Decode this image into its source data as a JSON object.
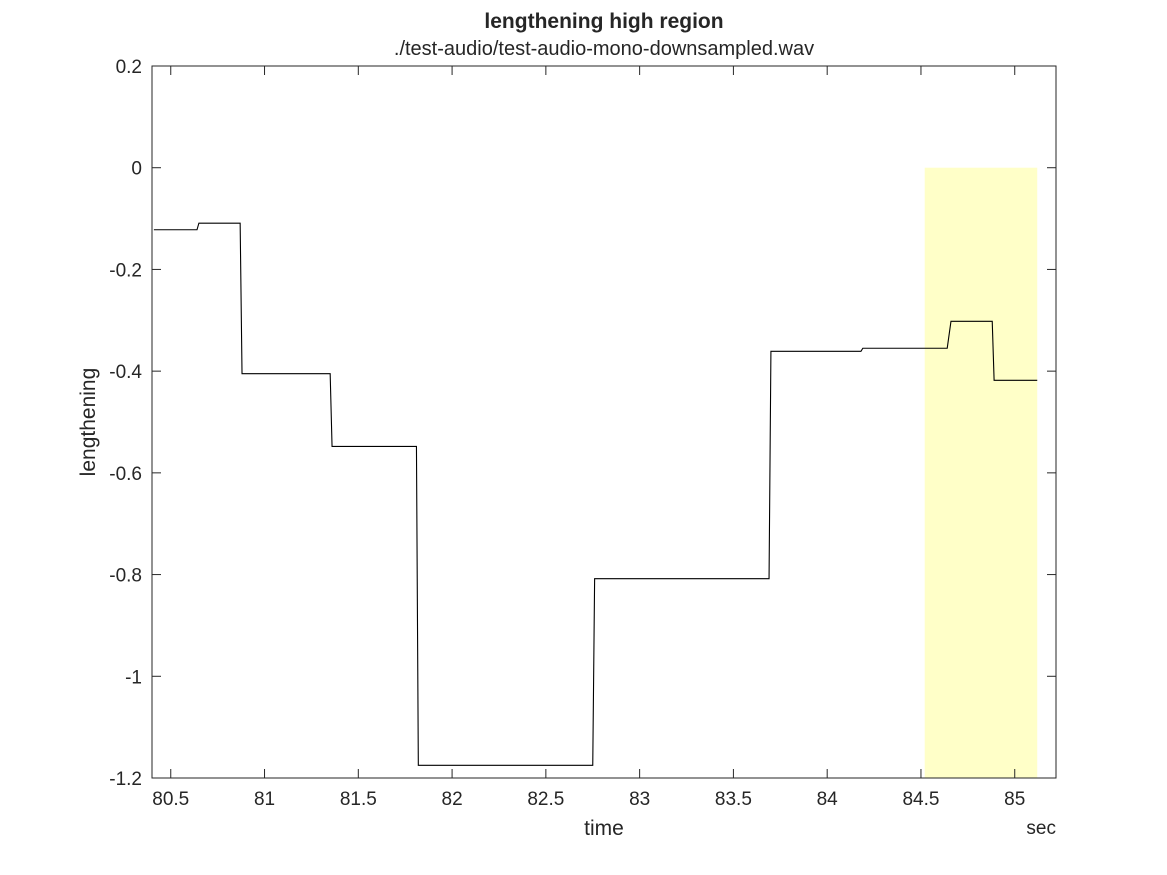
{
  "chart_data": {
    "type": "line",
    "title": "lengthening high region",
    "subtitle": "./test-audio/test-audio-mono-downsampled.wav",
    "xlabel": "time",
    "ylabel": "lengthening",
    "x_unit": "sec",
    "xlim": [
      80.4,
      85.22
    ],
    "ylim": [
      -1.2,
      0.2
    ],
    "xticks": [
      80.5,
      81,
      81.5,
      82,
      82.5,
      83,
      83.5,
      84,
      84.5,
      85
    ],
    "xtick_labels": [
      "80.5",
      "81",
      "81.5",
      "82",
      "82.5",
      "83",
      "83.5",
      "84",
      "84.5",
      "85"
    ],
    "yticks": [
      0.2,
      0,
      -0.2,
      -0.4,
      -0.6,
      -0.8,
      -1,
      -1.2
    ],
    "ytick_labels": [
      "0.2",
      "0",
      "-0.2",
      "-0.4",
      "-0.6",
      "-0.8",
      "-1",
      "-1.2"
    ],
    "grid": false,
    "highlight_region": {
      "x": [
        84.52,
        85.12
      ],
      "y": [
        -1.2,
        0
      ],
      "color": "#ffffc8"
    },
    "series": [
      {
        "color": "#000000",
        "x": [
          80.41,
          80.64,
          80.65,
          80.87,
          80.88,
          81.35,
          81.36,
          81.81,
          81.82,
          82.75,
          82.76,
          83.69,
          83.7,
          84.18,
          84.19,
          84.64,
          84.66,
          84.88,
          84.89,
          85.12
        ],
        "y": [
          -0.122,
          -0.122,
          -0.109,
          -0.109,
          -0.405,
          -0.405,
          -0.548,
          -0.548,
          -1.175,
          -1.175,
          -0.808,
          -0.808,
          -0.361,
          -0.361,
          -0.355,
          -0.355,
          -0.302,
          -0.302,
          -0.418,
          -0.418
        ]
      }
    ]
  }
}
